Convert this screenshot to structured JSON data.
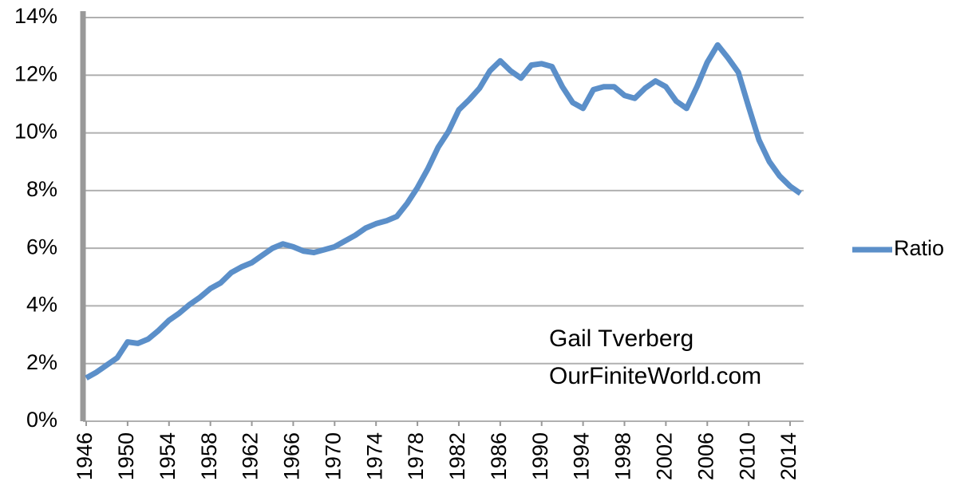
{
  "chart_data": {
    "type": "line",
    "x": [
      1946,
      1947,
      1948,
      1949,
      1950,
      1951,
      1952,
      1953,
      1954,
      1955,
      1956,
      1957,
      1958,
      1959,
      1960,
      1961,
      1962,
      1963,
      1964,
      1965,
      1966,
      1967,
      1968,
      1969,
      1970,
      1971,
      1972,
      1973,
      1974,
      1975,
      1976,
      1977,
      1978,
      1979,
      1980,
      1981,
      1982,
      1983,
      1984,
      1985,
      1986,
      1987,
      1988,
      1989,
      1990,
      1991,
      1992,
      1993,
      1994,
      1995,
      1996,
      1997,
      1998,
      1999,
      2000,
      2001,
      2002,
      2003,
      2004,
      2005,
      2006,
      2007,
      2008,
      2009,
      2010,
      2011,
      2012,
      2013,
      2014,
      2015
    ],
    "series": [
      {
        "name": "Ratio",
        "color": "#5b8fc9",
        "values": [
          1.5,
          1.7,
          1.95,
          2.2,
          2.75,
          2.7,
          2.85,
          3.15,
          3.5,
          3.75,
          4.05,
          4.3,
          4.6,
          4.8,
          5.15,
          5.35,
          5.5,
          5.75,
          6.0,
          6.15,
          6.05,
          5.9,
          5.85,
          5.95,
          6.05,
          6.25,
          6.45,
          6.7,
          6.85,
          6.95,
          7.1,
          7.55,
          8.1,
          8.75,
          9.5,
          10.05,
          10.8,
          11.15,
          11.55,
          12.15,
          12.5,
          12.15,
          11.9,
          12.35,
          12.4,
          12.3,
          11.6,
          11.05,
          10.85,
          11.5,
          11.6,
          11.6,
          11.3,
          11.2,
          11.55,
          11.8,
          11.6,
          11.1,
          10.85,
          11.6,
          12.45,
          13.05,
          12.6,
          12.1,
          10.9,
          9.75,
          9.0,
          8.5,
          8.15,
          7.9
        ]
      }
    ],
    "xlim": [
      1946,
      2015
    ],
    "xticks": [
      1946,
      1950,
      1954,
      1958,
      1962,
      1966,
      1970,
      1974,
      1978,
      1982,
      1986,
      1990,
      1994,
      1998,
      2002,
      2006,
      2010,
      2014
    ],
    "ylim": [
      0,
      14
    ],
    "yticks": [
      {
        "value": 0,
        "label": "0%"
      },
      {
        "value": 2,
        "label": "2%"
      },
      {
        "value": 4,
        "label": "4%"
      },
      {
        "value": 6,
        "label": "6%"
      },
      {
        "value": 8,
        "label": "8%"
      },
      {
        "value": 10,
        "label": "10%"
      },
      {
        "value": 12,
        "label": "12%"
      },
      {
        "value": 14,
        "label": "14%"
      }
    ],
    "grid": true,
    "legend": "right",
    "annotations": [
      "Gail Tverberg",
      "OurFiniteWorld.com"
    ]
  }
}
